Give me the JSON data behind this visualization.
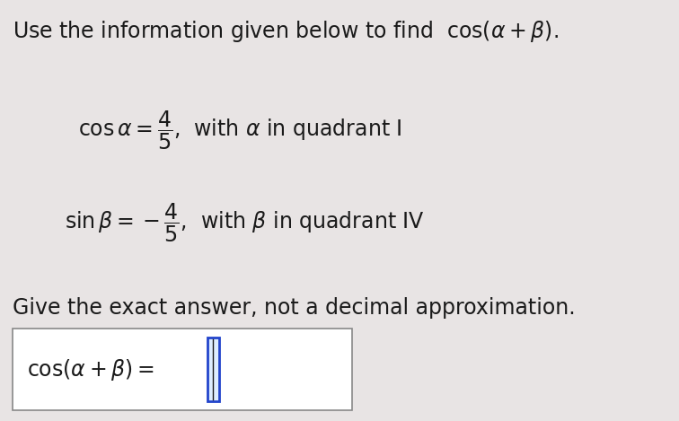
{
  "bg_color": "#e8e4e4",
  "top_bg": "#f0eeee",
  "text_color": "#1a1a1a",
  "title_text": "Use the information given below to find  cos (α+β).",
  "line1_math": "$\\cos\\alpha=\\dfrac{4}{5}$,",
  "line1_rest": " with α in quadrant I",
  "line2_math": "$\\sin\\beta=-\\dfrac{4}{5}$,",
  "line2_rest": " with β in quadrant IV",
  "instruction": "Give the exact answer, not a decimal approximation.",
  "answer_label": "cos (α + β) = ",
  "box_color": "#ffffff",
  "box_border": "#888888",
  "cursor_color": "#2244cc",
  "title_fontsize": 17,
  "body_fontsize": 17,
  "answer_fontsize": 17
}
